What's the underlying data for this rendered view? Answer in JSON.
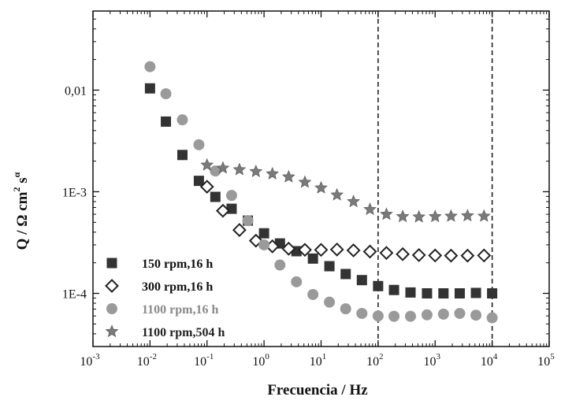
{
  "chart_data": {
    "type": "scatter",
    "x_scale": "log",
    "y_scale": "log",
    "xlim": [
      0.001,
      100000
    ],
    "ylim": [
      3e-05,
      0.06
    ],
    "x_ticks": [
      {
        "value": 0.001,
        "base": "10",
        "exp": "-3"
      },
      {
        "value": 0.01,
        "base": "10",
        "exp": "-2"
      },
      {
        "value": 0.1,
        "base": "10",
        "exp": "-1"
      },
      {
        "value": 1,
        "base": "10",
        "exp": "0"
      },
      {
        "value": 10,
        "base": "10",
        "exp": "1"
      },
      {
        "value": 100,
        "base": "10",
        "exp": "2"
      },
      {
        "value": 1000,
        "base": "10",
        "exp": "3"
      },
      {
        "value": 10000,
        "base": "10",
        "exp": "4"
      },
      {
        "value": 100000,
        "base": "10",
        "exp": "5"
      }
    ],
    "y_ticks": [
      {
        "value": 0.01,
        "label": "0,01"
      },
      {
        "value": 0.001,
        "label": "1E-3"
      },
      {
        "value": 0.0001,
        "label": "1E-4"
      }
    ],
    "xlabel": "Frecuencia / Hz",
    "ylabel": {
      "prefix": "Q / Ω cm",
      "sup1": "2",
      "mid": " s",
      "sup2": "α"
    },
    "reference_lines_x": [
      100,
      10000
    ],
    "legend_position": "bottom-left",
    "colors": {
      "s150": "#333333",
      "s300": "#222222",
      "s1100": "#9a9a9a",
      "s1100_504": "#7a7a7a"
    },
    "series": [
      {
        "name": "150 rpm,16 h",
        "marker": "square",
        "x": [
          0.01,
          0.019,
          0.037,
          0.072,
          0.14,
          0.27,
          0.52,
          1.0,
          1.9,
          3.7,
          7.2,
          14,
          27,
          52,
          100,
          190,
          370,
          720,
          1400,
          2700,
          5200,
          10000
        ],
        "y": [
          0.0104,
          0.0049,
          0.0023,
          0.00128,
          0.00089,
          0.00068,
          0.00052,
          0.00039,
          0.00031,
          0.00026,
          0.00022,
          0.000185,
          0.000155,
          0.000135,
          0.000118,
          0.000108,
          0.000102,
          0.0001,
          0.0001,
          0.0001,
          0.000101,
          0.0001
        ]
      },
      {
        "name": "300 rpm,16 h",
        "marker": "diamond",
        "x": [
          0.1,
          0.19,
          0.37,
          0.72,
          1.4,
          2.7,
          5.2,
          10,
          19,
          37,
          72,
          140,
          270,
          520,
          1000,
          1900,
          3700,
          7200
        ],
        "y": [
          0.00112,
          0.00065,
          0.00042,
          0.00033,
          0.00029,
          0.000275,
          0.000268,
          0.000268,
          0.00027,
          0.000265,
          0.000258,
          0.00025,
          0.000243,
          0.000238,
          0.000236,
          0.000235,
          0.000235,
          0.000236
        ]
      },
      {
        "name": "1100 rpm,16 h",
        "marker": "circle",
        "x": [
          0.01,
          0.019,
          0.037,
          0.072,
          0.14,
          0.27,
          0.52,
          1.0,
          1.9,
          3.7,
          7.2,
          14,
          27,
          52,
          100,
          190,
          370,
          720,
          1400,
          2700,
          5200,
          10000
        ],
        "y": [
          0.017,
          0.0092,
          0.0051,
          0.0029,
          0.0016,
          0.00092,
          0.00052,
          0.0003,
          0.00019,
          0.00013,
          9.75e-05,
          8.2e-05,
          7.05e-05,
          6.35e-05,
          6e-05,
          5.95e-05,
          5.95e-05,
          6.15e-05,
          6.25e-05,
          6.35e-05,
          6.1e-05,
          5.75e-05
        ]
      },
      {
        "name": "1100 rpm,504 h",
        "marker": "star",
        "x": [
          0.1,
          0.19,
          0.37,
          0.72,
          1.4,
          2.7,
          5.2,
          10,
          19,
          37,
          72,
          140,
          270,
          520,
          1000,
          1900,
          3700,
          7200
        ],
        "y": [
          0.00183,
          0.00171,
          0.00165,
          0.00158,
          0.0015,
          0.0014,
          0.00124,
          0.00109,
          0.00093,
          0.0008,
          0.00067,
          0.0006,
          0.00057,
          0.000565,
          0.00057,
          0.000575,
          0.00058,
          0.000575
        ]
      }
    ]
  }
}
